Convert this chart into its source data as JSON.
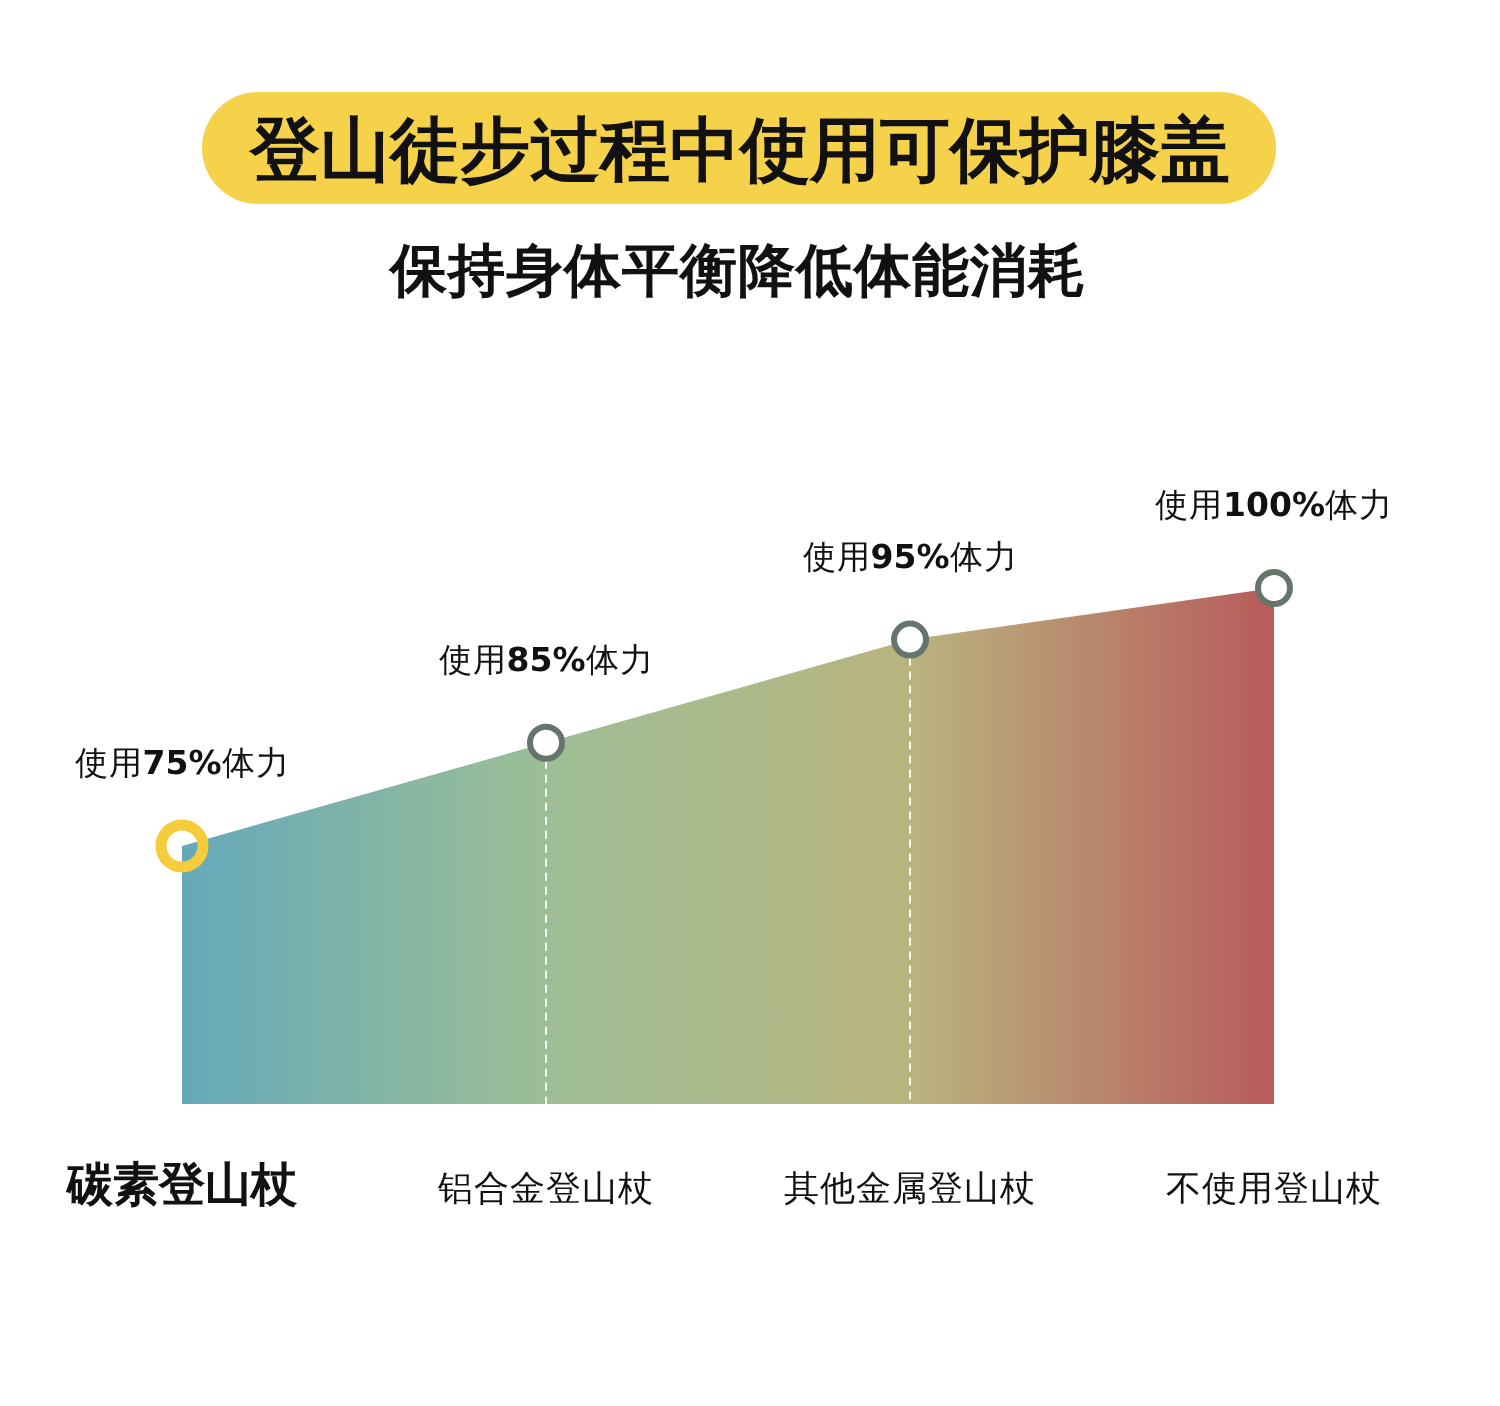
{
  "chart_data": {
    "type": "area",
    "title": "登山徒步过程中使用可保护膝盖",
    "subtitle": "保持身体平衡降低体能消耗",
    "categories": [
      "碳素登山杖",
      "铝合金登山杖",
      "其他金属登山杖",
      "不使用登山杖"
    ],
    "values": [
      75,
      85,
      95,
      100
    ],
    "colors": [
      "#64a9ba",
      "#9dbe95",
      "#b9b47f",
      "#b85b5b"
    ],
    "value_labels": [
      "使用75%体力",
      "使用85%体力",
      "使用95%体力",
      "使用100%体力"
    ],
    "ref_lines": [
      {
        "axis": "x",
        "value": "铝合金登山杖",
        "color": "#ffffff",
        "line_style": "dashed"
      },
      {
        "axis": "x",
        "value": "其他金属登山杖",
        "color": "#ffffff",
        "line_style": "dashed"
      }
    ],
    "marker": "circle",
    "tick_labels": "x"
  }
}
